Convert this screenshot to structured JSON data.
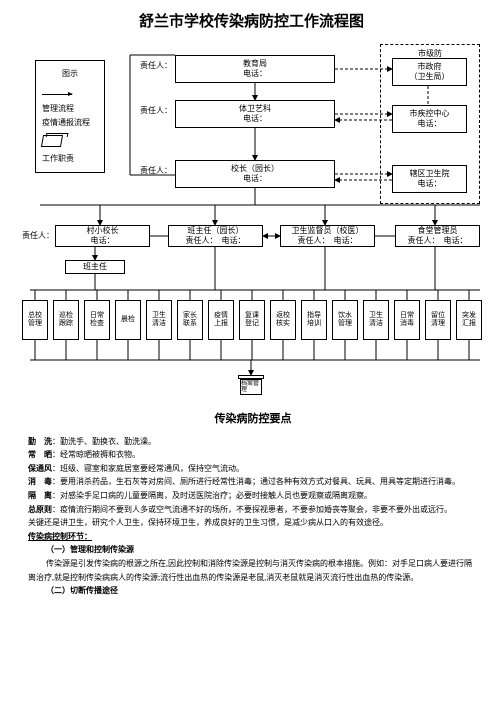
{
  "title": "舒兰市学校传染病防控工作流程图",
  "legend": {
    "title": "图示",
    "mgmt": "管理流程",
    "report": "疫情通报流程",
    "duty": "工作职责"
  },
  "city_defense": "市级防",
  "nodes": {
    "edu": {
      "label": "教育局",
      "resp": "责任人：",
      "phone": "电话："
    },
    "gov": {
      "label": "市政府",
      "sub": "（卫生局）"
    },
    "art": {
      "label": "体卫艺科",
      "resp": "责任人：",
      "phone": "电话："
    },
    "cdc": {
      "label": "市疾控中心",
      "phone": "电话："
    },
    "principal": {
      "label": "校长（园长）",
      "resp": "责任人：",
      "phone": "电话："
    },
    "district": {
      "label": "辖区卫生院",
      "phone": "电话："
    },
    "village": {
      "label": "村小校长",
      "resp": "责任人：",
      "phone": "电话："
    },
    "teacher": {
      "label": "班主任（园长）",
      "resp": "责任人：",
      "phone": "电话："
    },
    "supervisor": {
      "label": "卫生监督员（校医）",
      "resp": "责任人：",
      "phone": "电话："
    },
    "canteen": {
      "label": "食堂管理员",
      "resp": "责任人：",
      "phone": "电话："
    },
    "class_teacher": {
      "label": "班主任"
    }
  },
  "bottom_tasks": [
    "总校管理",
    "巡检跟踪",
    "日常检查",
    "晨检",
    "卫生清洁",
    "家长联系",
    "疫情上报",
    "复课登记",
    "返校核实",
    "指导培训",
    "饮水管理",
    "卫生清洁",
    "日常消毒",
    "留位清理",
    "突发汇报"
  ],
  "archive": "档案管理",
  "keypoints": {
    "title": "传染病防控要点",
    "items": [
      {
        "label": "勤　洗",
        "text": "：勤洗手、勤换衣、勤洗澡。"
      },
      {
        "label": "常　晒",
        "text": "：经常晾晒被褥和衣物。"
      },
      {
        "label": "保通风",
        "text": "：班级、寝室和家庭居室要经常通风，保持空气流动。"
      },
      {
        "label": "消　毒",
        "text": "：要用消杀药品，生石灰等对房间、厕所进行经常性消毒；通过各种有效方式对餐具、玩具、用具等定期进行消毒。"
      },
      {
        "label": "隔　离",
        "text": "：对感染手足口病的儿童要隔离，及时送医院治疗；必要时接触人员也要观察或隔离观察。"
      },
      {
        "label": "总原则",
        "text": "：疫情流行期间不要到人多或空气流通不好的场所，不要探视患者，不要参加婚丧等聚会，非要不要外出或远行。"
      }
    ],
    "conclusion": "关键还是讲卫生，研究个人卫生，保持环境卫生，养成良好的卫生习惯，是减少病从口入的有效途径。",
    "section_title": "传染病控制环节：",
    "sub1": "（一）管理和控制传染源",
    "sub1_text": "传染源是引发传染病的根源之所在,因此控制和消除传染源是控制与消灭传染病的根本措施。例如：对手足口病人要进行隔",
    "sub1_text2": "离治疗,就是控制传染病病人的传染源;流行性出血热的传染源是老鼠,消灭老鼠就是消灭流行性出血热的传染源。",
    "sub2": "（二）切断传播途径"
  }
}
